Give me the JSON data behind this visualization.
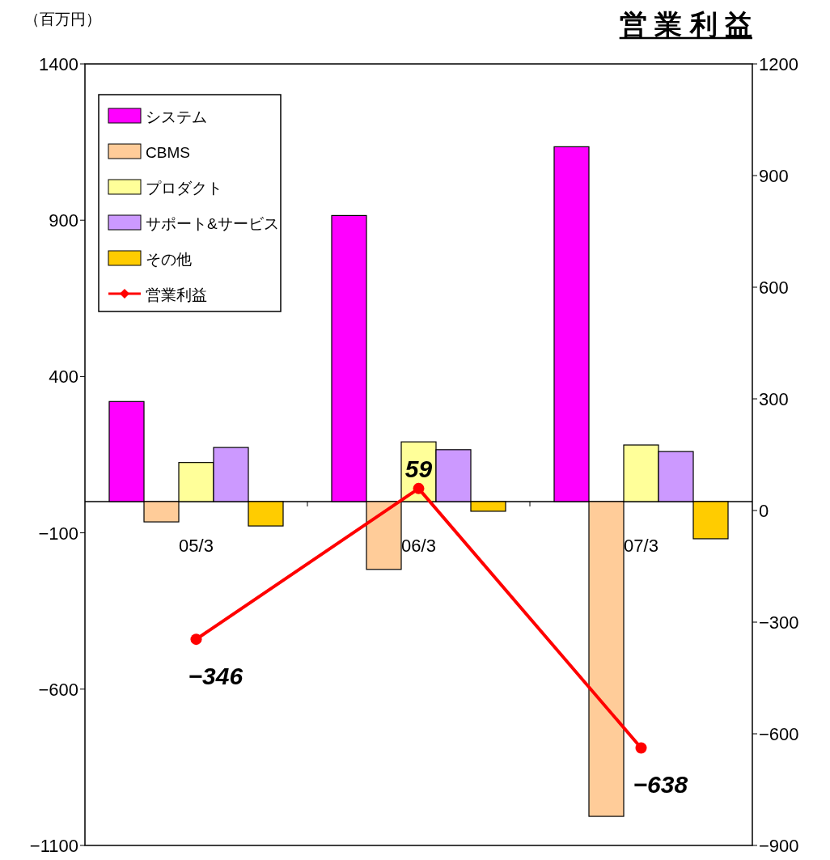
{
  "chart_data": {
    "type": "bar",
    "title": "営 業 利 益",
    "ylabel": "（百万円）",
    "categories": [
      "05/3",
      "06/3",
      "07/3"
    ],
    "series": [
      {
        "name": "システム",
        "color": "#ff00ff",
        "values": [
          320,
          915,
          1135
        ]
      },
      {
        "name": "CBMS",
        "color": "#ffcc99",
        "values": [
          -65,
          -217,
          -1007
        ]
      },
      {
        "name": "プロダクト",
        "color": "#ffff99",
        "values": [
          125,
          191,
          181
        ]
      },
      {
        "name": "サポート&サービス",
        "color": "#cc99ff",
        "values": [
          173,
          166,
          160
        ]
      },
      {
        "name": "その他",
        "color": "#ffcc00",
        "values": [
          -78,
          -31,
          -119
        ]
      },
      {
        "name": "営業利益",
        "type": "line",
        "axis": "y2",
        "color": "#ff0000",
        "marker": "circle",
        "values": [
          -346,
          59,
          -638
        ],
        "data_labels": true
      }
    ],
    "ylim": [
      -1100,
      1400
    ],
    "yticks": [
      -1100,
      -600,
      -100,
      400,
      900,
      1400
    ],
    "y2lim": [
      -900,
      1200
    ],
    "y2ticks": [
      -900,
      -600,
      -300,
      0,
      300,
      600,
      900,
      1200
    ],
    "grid": false,
    "legend": "top left"
  }
}
